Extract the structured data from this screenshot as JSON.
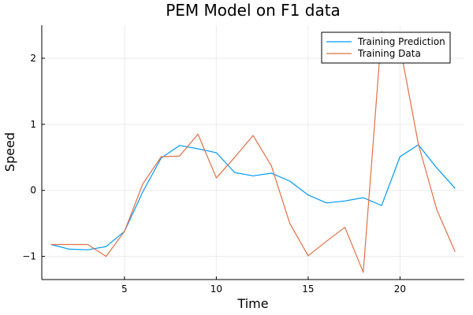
{
  "chart_data": {
    "type": "line",
    "title": "PEM Model on F1 data",
    "xlabel": "Time",
    "ylabel": "Speed",
    "xlim": [
      0.5,
      23.5
    ],
    "ylim": [
      -1.35,
      2.5
    ],
    "xticks": [
      5,
      10,
      15,
      20
    ],
    "yticks": [
      -1,
      0,
      1,
      2
    ],
    "grid": true,
    "legend_position": "top-right",
    "x": [
      1,
      2,
      3,
      4,
      5,
      6,
      7,
      8,
      9,
      10,
      11,
      12,
      13,
      14,
      15,
      16,
      17,
      18,
      19,
      20,
      21,
      22,
      23
    ],
    "series": [
      {
        "name": "Training Prediction",
        "color": "#009af9",
        "values": [
          -0.82,
          -0.89,
          -0.9,
          -0.85,
          -0.62,
          -0.02,
          0.49,
          0.68,
          0.63,
          0.57,
          0.27,
          0.22,
          0.26,
          0.14,
          -0.07,
          -0.19,
          -0.16,
          -0.11,
          -0.23,
          0.51,
          0.69,
          0.34,
          0.03
        ]
      },
      {
        "name": "Training Data",
        "color": "#e26f46",
        "values": [
          -0.82,
          -0.82,
          -0.82,
          -1.0,
          -0.62,
          0.1,
          0.51,
          0.52,
          0.85,
          0.19,
          0.5,
          0.83,
          0.37,
          -0.5,
          -0.99,
          -0.77,
          -0.56,
          -1.24,
          2.4,
          2.18,
          0.7,
          -0.29,
          -0.93
        ]
      }
    ]
  }
}
